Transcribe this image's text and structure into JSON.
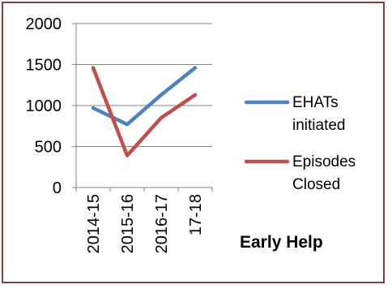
{
  "chart_data": {
    "type": "line",
    "title": "Early Help",
    "categories": [
      "2014-15",
      "2015-16",
      "2016-17",
      "17-18"
    ],
    "series": [
      {
        "name_lines": [
          "EHATs",
          "initiated"
        ],
        "color": "#4f81bd",
        "values": [
          970,
          770,
          1130,
          1460
        ]
      },
      {
        "name_lines": [
          "Episodes",
          "Closed"
        ],
        "color": "#c0504d",
        "values": [
          1460,
          390,
          850,
          1130
        ]
      }
    ],
    "ylim": [
      0,
      2000
    ],
    "yticks": [
      "0",
      "500",
      "1000",
      "1500",
      "2000"
    ],
    "grid": true,
    "legend": "right"
  }
}
